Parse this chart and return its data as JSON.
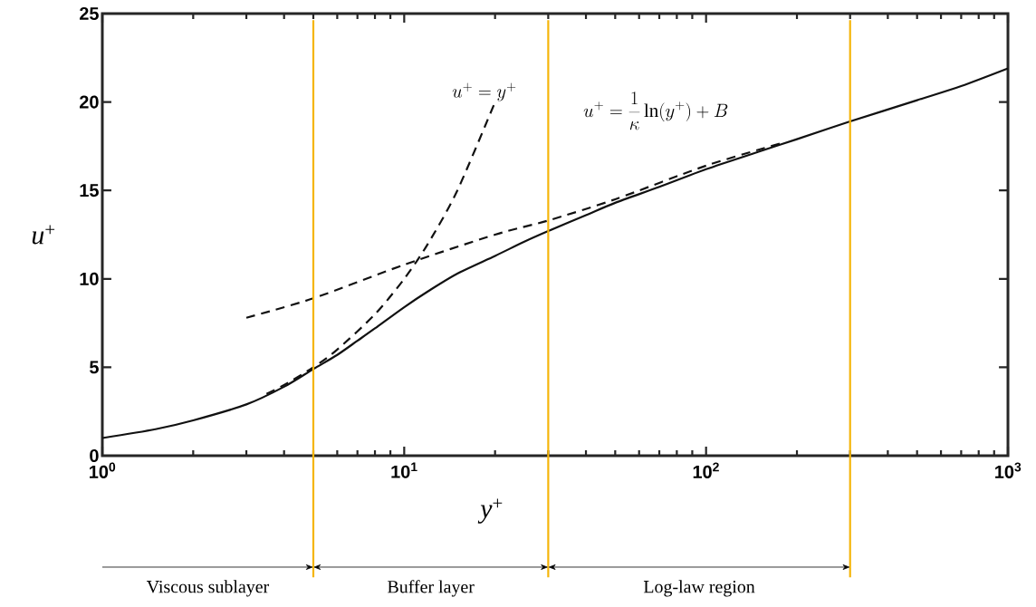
{
  "chart_data": {
    "type": "line",
    "xlabel": "*y*$^{+}$",
    "ylabel": "*u*$^{+}$",
    "log": "x",
    "xlim": [
      1,
      1000
    ],
    "ylim": [
      0,
      25
    ],
    "xticks": [
      {
        "value": 1,
        "label": "10$^{0}$"
      },
      {
        "value": 10,
        "label": "10$^{1}$"
      },
      {
        "value": 100,
        "label": "10$^{2}$"
      },
      {
        "value": 1000,
        "label": "10$^{3}$"
      }
    ],
    "yticks": [
      0,
      5,
      10,
      15,
      20,
      25
    ],
    "grid": false,
    "series": [
      {
        "color": "#111111",
        "line_style": "solid",
        "x": [
          1,
          1.5,
          2,
          3,
          4,
          5,
          6,
          7,
          8,
          10,
          12,
          15,
          20,
          25,
          30,
          40,
          50,
          70,
          100,
          150,
          200,
          300,
          500,
          700,
          1000
        ],
        "values": [
          1.0,
          1.5,
          2.0,
          2.9,
          3.9,
          4.9,
          5.7,
          6.5,
          7.2,
          8.4,
          9.3,
          10.3,
          11.3,
          12.1,
          12.7,
          13.6,
          14.3,
          15.2,
          16.2,
          17.2,
          17.9,
          18.9,
          20.1,
          20.9,
          21.9
        ]
      },
      {
        "color": "#111111",
        "line_style": "dashed",
        "x": [
          3.5,
          4,
          5,
          6,
          8,
          10,
          12,
          15,
          20
        ],
        "values": [
          3.5,
          4,
          5,
          6,
          8,
          10,
          12,
          15,
          20
        ]
      },
      {
        "color": "#111111",
        "line_style": "dashed",
        "x": [
          3,
          5,
          10,
          20,
          30,
          50,
          100,
          180
        ],
        "values": [
          7.8,
          8.9,
          10.8,
          12.5,
          13.3,
          14.5,
          16.4,
          17.7
        ]
      }
    ],
    "ref_lines": [
      {
        "axis": "x",
        "value": 5,
        "color": "#f5b50a"
      },
      {
        "axis": "x",
        "value": 30,
        "color": "#f5b50a"
      },
      {
        "axis": "x",
        "value": 300,
        "color": "#f5b50a"
      }
    ],
    "annotations": [
      "u^+ = y^+",
      "u^+ = \\frac{1}{\\kappa}\\ln(y^+) + B",
      "Viscous sublayer",
      "Buffer layer",
      "Log-law region"
    ]
  }
}
